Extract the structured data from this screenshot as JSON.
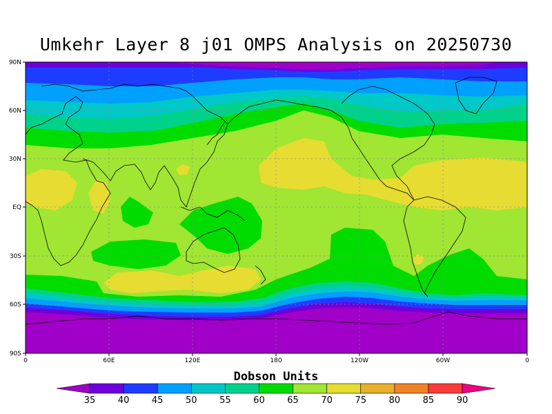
{
  "title": "Umkehr Layer 8 j01 OMPS Analysis on 20250730",
  "lat_labels": [
    "90N",
    "60N",
    "30N",
    "EQ",
    "30S",
    "60S",
    "90S"
  ],
  "lon_labels": [
    "0",
    "60E",
    "120E",
    "180",
    "120W",
    "60W",
    "0"
  ],
  "colorbar": {
    "title": "Dobson Units",
    "levels": [
      "35",
      "40",
      "45",
      "50",
      "55",
      "60",
      "65",
      "70",
      "75",
      "80",
      "85",
      "90"
    ],
    "colors": [
      "#a000c8",
      "#6e00dc",
      "#1e3cff",
      "#00a0ff",
      "#00c8c8",
      "#00d28c",
      "#00dc00",
      "#a0e632",
      "#e6dc32",
      "#e6af2d",
      "#f08228",
      "#fa3c3c",
      "#f00082"
    ],
    "under_color": "#a000c8",
    "over_color": "#f00082"
  },
  "map_colors": {
    "band_35": "#a000c8",
    "band_40": "#6e00dc",
    "band_45": "#1e3cff",
    "band_50": "#00a0ff",
    "band_55": "#00c8c8",
    "band_60": "#00d28c",
    "band_65": "#00dc00",
    "band_70": "#a0e632",
    "band_75": "#e6dc32"
  }
}
